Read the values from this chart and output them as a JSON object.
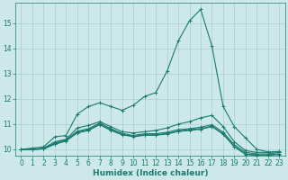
{
  "xlabel": "Humidex (Indice chaleur)",
  "background_color": "#cce8e8",
  "grid_color": "#aacece",
  "line_color": "#1a7a6e",
  "xlim": [
    -0.5,
    23.5
  ],
  "ylim": [
    9.75,
    15.8
  ],
  "yticks": [
    10,
    11,
    12,
    13,
    14,
    15
  ],
  "xticks": [
    0,
    1,
    2,
    3,
    4,
    5,
    6,
    7,
    8,
    9,
    10,
    11,
    12,
    13,
    14,
    15,
    16,
    17,
    18,
    19,
    20,
    21,
    22,
    23
  ],
  "series": [
    [
      10.0,
      10.05,
      10.1,
      10.5,
      10.55,
      11.4,
      11.7,
      11.85,
      11.7,
      11.55,
      11.75,
      12.1,
      12.25,
      13.1,
      14.3,
      15.1,
      15.55,
      14.1,
      11.7,
      10.9,
      10.45,
      10.0,
      9.9,
      9.9
    ],
    [
      10.0,
      10.0,
      10.05,
      10.3,
      10.4,
      10.85,
      10.95,
      11.1,
      10.9,
      10.7,
      10.65,
      10.7,
      10.75,
      10.85,
      11.0,
      11.1,
      11.25,
      11.35,
      10.9,
      10.3,
      9.95,
      9.88,
      9.88,
      9.92
    ],
    [
      10.0,
      10.0,
      10.03,
      10.25,
      10.38,
      10.72,
      10.82,
      11.05,
      10.82,
      10.63,
      10.55,
      10.62,
      10.62,
      10.68,
      10.78,
      10.82,
      10.88,
      10.98,
      10.68,
      10.18,
      9.88,
      9.82,
      9.82,
      9.88
    ],
    [
      10.0,
      10.0,
      10.02,
      10.22,
      10.35,
      10.68,
      10.78,
      11.0,
      10.78,
      10.6,
      10.52,
      10.58,
      10.58,
      10.63,
      10.73,
      10.78,
      10.82,
      10.92,
      10.62,
      10.12,
      9.82,
      9.78,
      9.78,
      9.82
    ],
    [
      10.0,
      10.0,
      10.02,
      10.2,
      10.33,
      10.65,
      10.75,
      10.98,
      10.75,
      10.58,
      10.5,
      10.56,
      10.56,
      10.61,
      10.71,
      10.75,
      10.8,
      10.9,
      10.6,
      10.1,
      9.8,
      9.76,
      9.76,
      9.8
    ]
  ],
  "marker": "+",
  "markersize": 3,
  "linewidth": 0.8,
  "fontsize_ticks": 5.5,
  "fontsize_xlabel": 6.5
}
